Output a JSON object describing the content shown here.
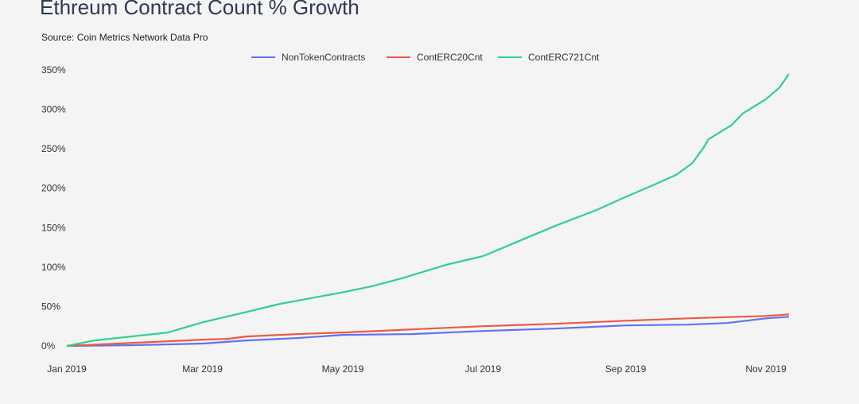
{
  "chart_data": {
    "type": "line",
    "title": "Ethreum Contract Count % Growth",
    "subtitle": "Source: Coin Metrics Network Data Pro",
    "xlabel": "",
    "ylabel": "",
    "x_unit": "days since 2019-01-01",
    "xlim": [
      0,
      314
    ],
    "ylim": [
      0,
      350
    ],
    "yticks": [
      0,
      50,
      100,
      150,
      200,
      250,
      300,
      350
    ],
    "ytick_labels": [
      "0%",
      "50%",
      "100%",
      "150%",
      "200%",
      "250%",
      "300%",
      "350%"
    ],
    "xticks": [
      0,
      59,
      120,
      181,
      243,
      304
    ],
    "xtick_labels": [
      "Jan 2019",
      "Mar 2019",
      "May 2019",
      "Jul 2019",
      "Sep 2019",
      "Nov 2019"
    ],
    "legend_position": "top-center",
    "grid": false,
    "series": [
      {
        "name": "NonTokenContracts",
        "color": "#6272f0",
        "x": [
          0,
          30,
          59,
          78,
          100,
          120,
          150,
          181,
          212,
          243,
          270,
          287,
          304,
          314
        ],
        "y": [
          0,
          1,
          3,
          7,
          10,
          14,
          15,
          19,
          22,
          26,
          27,
          29,
          35,
          37
        ]
      },
      {
        "name": "ContERC20Cnt",
        "color": "#ea5b45",
        "x": [
          0,
          30,
          59,
          70,
          78,
          100,
          120,
          150,
          181,
          212,
          243,
          270,
          304,
          314
        ],
        "y": [
          0,
          4,
          8,
          9,
          12,
          15,
          17,
          21,
          25,
          28,
          32,
          35,
          38,
          40
        ]
      },
      {
        "name": "ContERC721Cnt",
        "color": "#2fcf92",
        "x": [
          0,
          12,
          44,
          59,
          75,
          92,
          120,
          133,
          146,
          165,
          181,
          199,
          213,
          230,
          243,
          255,
          265,
          272,
          277,
          279,
          289,
          294,
          304,
          310,
          314
        ],
        "y": [
          0,
          7,
          17,
          30,
          41,
          53,
          68,
          76,
          86,
          103,
          114,
          136,
          153,
          172,
          189,
          204,
          217,
          232,
          252,
          262,
          280,
          295,
          313,
          328,
          345
        ]
      }
    ]
  }
}
